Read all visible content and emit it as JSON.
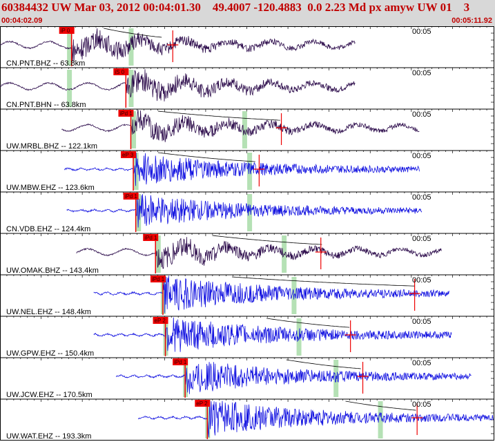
{
  "header": {
    "title": "60384432 UW Mar 03, 2012 00:04:01.30    49.4007 -120.4883  0.0 2.23 Md px amyw UW 01    3",
    "time_start": "00:04:02.09",
    "time_end": "00:05:11.92"
  },
  "colors": {
    "header_bg": "#d8d8d8",
    "header_text": "#c00000",
    "trace_bh": "#2b0a4a",
    "trace_eh": "#1010e0",
    "pick": "#ee0000",
    "window": "#a8dca8",
    "curve": "#000000"
  },
  "traces": [
    {
      "label": "CN.PNT.BHZ -- 63.8km",
      "duration": "00:05",
      "pick": "iP 0",
      "type": "BH",
      "start": 0.0,
      "end": 0.72,
      "onset": 0.145,
      "amp": 0.9,
      "windows": [
        0.14,
        0.265
      ],
      "curve": [
        0.21,
        0.33
      ],
      "marker": 0.35
    },
    {
      "label": "CN.PNT.BHN -- 63.8km",
      "duration": "00:05",
      "pick": "iS 0",
      "type": "BH",
      "start": 0.0,
      "end": 0.72,
      "onset": 0.255,
      "amp": 0.9,
      "windows": [
        0.14,
        0.265
      ],
      "curve": null,
      "marker": null
    },
    {
      "label": "UW.MRBL.BHZ -- 122.1km",
      "duration": "00:05",
      "pick": "iPd 1",
      "type": "BH",
      "start": 0.125,
      "end": 0.85,
      "onset": 0.265,
      "amp": 0.85,
      "windows": [
        0.27,
        0.495
      ],
      "curve": [
        0.32,
        0.57
      ],
      "marker": 0.57
    },
    {
      "label": "UW.MBW.EHZ -- 123.6km",
      "duration": "00:05",
      "pick": "eP 3",
      "type": "EH",
      "start": 0.13,
      "end": 0.85,
      "onset": 0.27,
      "amp": 0.85,
      "windows": [
        0.275,
        0.505
      ],
      "curve": [
        0.32,
        0.52
      ],
      "marker": 0.525
    },
    {
      "label": "CN.VDB.EHZ -- 124.4km",
      "duration": "00:05",
      "pick": "iPd 1",
      "type": "EH",
      "start": 0.135,
      "end": 0.855,
      "onset": 0.275,
      "amp": 0.85,
      "windows": [
        0.28,
        0.505
      ],
      "curve": null,
      "marker": null
    },
    {
      "label": "UW.OMAK.BHZ -- 143.4km",
      "duration": "00:05",
      "pick": "iPd 1",
      "type": "BH",
      "start": 0.155,
      "end": 0.895,
      "onset": 0.315,
      "amp": 0.85,
      "windows": [
        0.32,
        0.575
      ],
      "curve": [
        0.43,
        0.655
      ],
      "marker": 0.65
    },
    {
      "label": "UW.NEL.EHZ -- 148.4km",
      "duration": "00:05",
      "pick": "iPd 1",
      "type": "EH",
      "start": 0.19,
      "end": 0.91,
      "onset": 0.33,
      "amp": 0.95,
      "windows": [
        0.33,
        0.595
      ],
      "curve": [
        0.47,
        0.84
      ],
      "marker": 0.84
    },
    {
      "label": "UW.GPW.EHZ -- 150.4km",
      "duration": "00:05",
      "pick": "eP 2",
      "type": "EH",
      "start": 0.19,
      "end": 0.915,
      "onset": 0.335,
      "amp": 0.95,
      "windows": [
        0.335,
        0.605
      ],
      "curve": [
        0.54,
        0.71
      ],
      "marker": 0.71
    },
    {
      "label": "UW.JCW.EHZ -- 170.5km",
      "duration": "00:05",
      "pick": "iPd 1",
      "type": "EH",
      "start": 0.235,
      "end": 0.955,
      "onset": 0.375,
      "amp": 0.9,
      "windows": [
        0.375,
        0.68
      ],
      "curve": [
        0.58,
        0.735
      ],
      "marker": 0.735
    },
    {
      "label": "UW.WAT.EHZ -- 193.3km",
      "duration": "00:05",
      "pick": "eP 2",
      "type": "EH",
      "start": 0.28,
      "end": 1.0,
      "onset": 0.42,
      "amp": 0.95,
      "windows": [
        0.42,
        0.77
      ],
      "curve": [
        0.7,
        0.845
      ],
      "marker": 0.845
    }
  ]
}
